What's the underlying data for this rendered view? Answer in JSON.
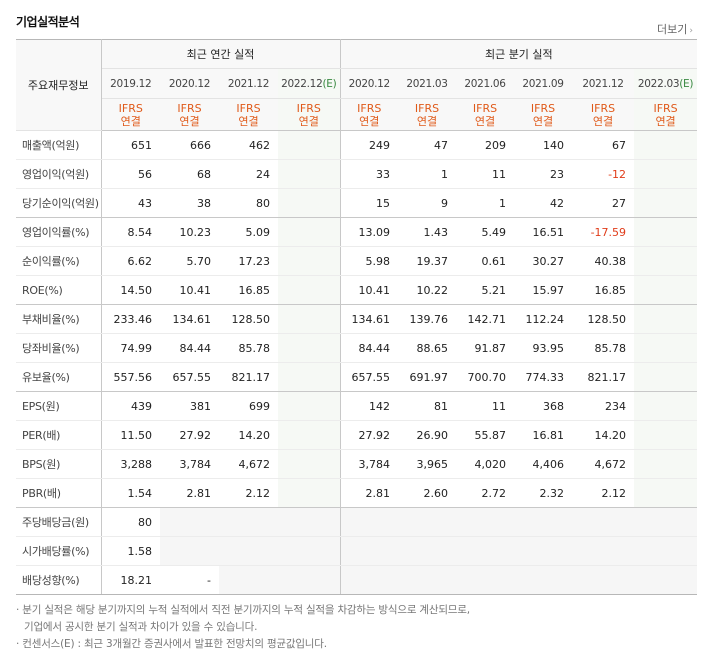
{
  "title": "기업실적분석",
  "more": "더보기",
  "header": {
    "label": "주요재무정보",
    "group_annual": "최근 연간 실적",
    "group_quarter": "최근 분기 실적",
    "annual_periods": [
      "2019.12",
      "2020.12",
      "2021.12",
      "2022.12(E)"
    ],
    "quarter_periods": [
      "2020.12",
      "2021.03",
      "2021.06",
      "2021.09",
      "2021.12",
      "2022.03(E)"
    ],
    "acct_line1": "IFRS",
    "acct_line2": "연결"
  },
  "colors": {
    "accent_orange": "#e05a1a",
    "negative": "#e03c1a",
    "estimate_bg": "#f6f9f5",
    "estimate_tag": "#3a8a42"
  },
  "rows": [
    {
      "label": "매출액(억원)",
      "values": [
        "651",
        "666",
        "462",
        "",
        "249",
        "47",
        "209",
        "140",
        "67",
        ""
      ]
    },
    {
      "label": "영업이익(억원)",
      "values": [
        "56",
        "68",
        "24",
        "",
        "33",
        "1",
        "11",
        "23",
        "-12",
        ""
      ]
    },
    {
      "label": "당기순이익(억원)",
      "values": [
        "43",
        "38",
        "80",
        "",
        "15",
        "9",
        "1",
        "42",
        "27",
        ""
      ]
    },
    {
      "label": "영업이익률(%)",
      "values": [
        "8.54",
        "10.23",
        "5.09",
        "",
        "13.09",
        "1.43",
        "5.49",
        "16.51",
        "-17.59",
        ""
      ]
    },
    {
      "label": "순이익률(%)",
      "values": [
        "6.62",
        "5.70",
        "17.23",
        "",
        "5.98",
        "19.37",
        "0.61",
        "30.27",
        "40.38",
        ""
      ]
    },
    {
      "label": "ROE(%)",
      "values": [
        "14.50",
        "10.41",
        "16.85",
        "",
        "10.41",
        "10.22",
        "5.21",
        "15.97",
        "16.85",
        ""
      ]
    },
    {
      "label": "부채비율(%)",
      "values": [
        "233.46",
        "134.61",
        "128.50",
        "",
        "134.61",
        "139.76",
        "142.71",
        "112.24",
        "128.50",
        ""
      ]
    },
    {
      "label": "당좌비율(%)",
      "values": [
        "74.99",
        "84.44",
        "85.78",
        "",
        "84.44",
        "88.65",
        "91.87",
        "93.95",
        "85.78",
        ""
      ]
    },
    {
      "label": "유보율(%)",
      "values": [
        "557.56",
        "657.55",
        "821.17",
        "",
        "657.55",
        "691.97",
        "700.70",
        "774.33",
        "821.17",
        ""
      ]
    },
    {
      "label": "EPS(원)",
      "values": [
        "439",
        "381",
        "699",
        "",
        "142",
        "81",
        "11",
        "368",
        "234",
        ""
      ]
    },
    {
      "label": "PER(배)",
      "values": [
        "11.50",
        "27.92",
        "14.20",
        "",
        "27.92",
        "26.90",
        "55.87",
        "16.81",
        "14.20",
        ""
      ]
    },
    {
      "label": "BPS(원)",
      "values": [
        "3,288",
        "3,784",
        "4,672",
        "",
        "3,784",
        "3,965",
        "4,020",
        "4,406",
        "4,672",
        ""
      ]
    },
    {
      "label": "PBR(배)",
      "values": [
        "1.54",
        "2.81",
        "2.12",
        "",
        "2.81",
        "2.60",
        "2.72",
        "2.32",
        "2.12",
        ""
      ]
    },
    {
      "label": "주당배당금(원)",
      "values": [
        "80",
        "",
        "",
        "",
        "",
        "",
        "",
        "",
        "",
        ""
      ]
    },
    {
      "label": "시가배당률(%)",
      "values": [
        "1.58",
        "",
        "",
        "",
        "",
        "",
        "",
        "",
        "",
        ""
      ]
    },
    {
      "label": "배당성향(%)",
      "values": [
        "18.21",
        "-",
        "",
        "",
        "",
        "",
        "",
        "",
        "",
        ""
      ]
    }
  ],
  "notes": {
    "line1": "분기 실적은 해당 분기까지의 누적 실적에서 직전 분기까지의 누적 실적을 차감하는 방식으로 계산되므로,",
    "line2": "기업에서 공시한 분기 실적과 차이가 있을 수 있습니다.",
    "line3": "컨센서스(E) : 최근 3개월간 증권사에서 발표한 전망치의 평균값입니다."
  }
}
